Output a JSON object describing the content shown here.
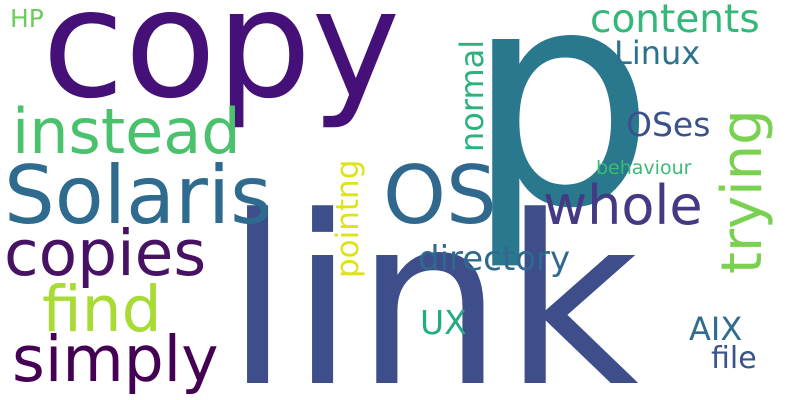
{
  "words": [
    {
      "text": "copy",
      "color": "#451077"
    },
    {
      "text": "p",
      "color": "#2a788e"
    },
    {
      "text": "link",
      "color": "#3d4e8a"
    },
    {
      "text": "Solaris",
      "color": "#2e6b8e"
    },
    {
      "text": "OS",
      "color": "#31688e"
    },
    {
      "text": "instead",
      "color": "#4ac16d"
    },
    {
      "text": "copies",
      "color": "#471164"
    },
    {
      "text": "find",
      "color": "#a8db34"
    },
    {
      "text": "simply",
      "color": "#440154"
    },
    {
      "text": "whole",
      "color": "#443983"
    },
    {
      "text": "trying",
      "color": "#7ad151"
    },
    {
      "text": "contents",
      "color": "#35b779"
    },
    {
      "text": "Linux",
      "color": "#2c728e"
    },
    {
      "text": "OSes",
      "color": "#3b518b"
    },
    {
      "text": "directory",
      "color": "#31688e"
    },
    {
      "text": "normal",
      "color": "#2db27d"
    },
    {
      "text": "pointng",
      "color": "#dde318"
    },
    {
      "text": "behaviour",
      "color": "#3bbb75"
    },
    {
      "text": "UX",
      "color": "#25ab82"
    },
    {
      "text": "AIX",
      "color": "#2f6c8e"
    },
    {
      "text": "file",
      "color": "#3a548c"
    },
    {
      "text": "HP",
      "color": "#6ccd5a"
    }
  ]
}
